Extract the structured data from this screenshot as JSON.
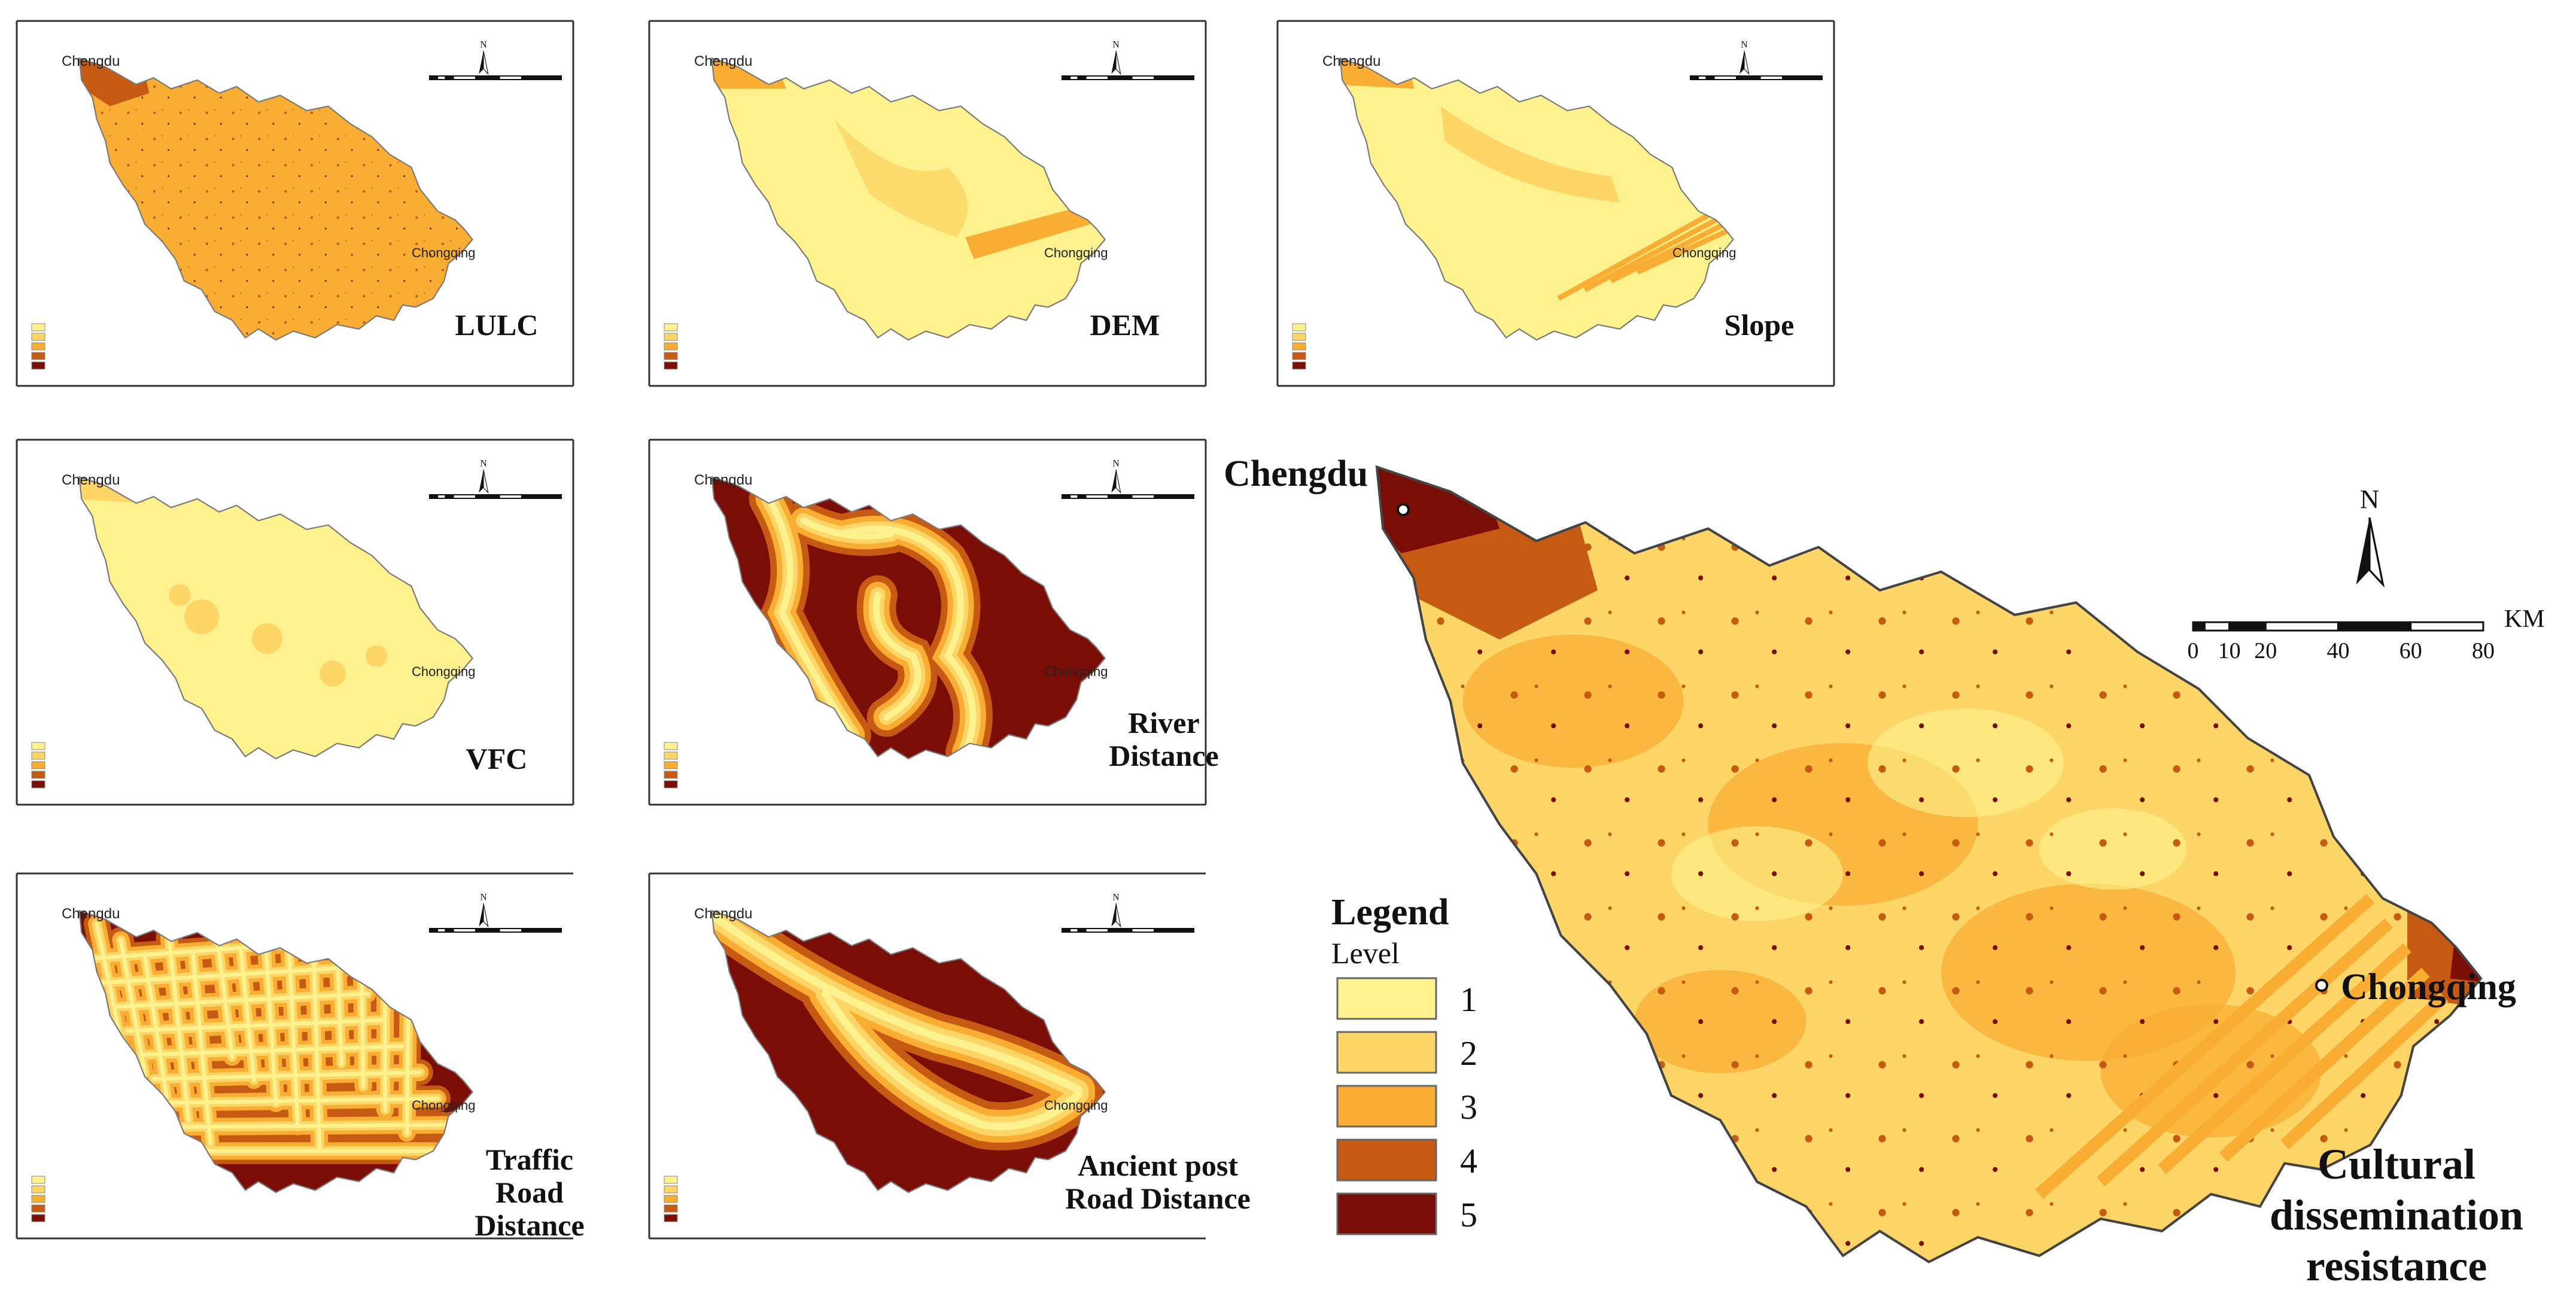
{
  "panels": [
    {
      "id": "lulc",
      "title_lines": [
        "LULC"
      ],
      "chengdu": "Chengdu",
      "chongqing": "Chongqing",
      "variant": "lulc"
    },
    {
      "id": "dem",
      "title_lines": [
        "DEM"
      ],
      "chengdu": "Chengdu",
      "chongqing": "Chongqing",
      "variant": "dem"
    },
    {
      "id": "slope",
      "title_lines": [
        "Slope"
      ],
      "chengdu": "Chengdu",
      "chongqing": "Chongqing",
      "variant": "slope"
    },
    {
      "id": "vfc",
      "title_lines": [
        "VFC"
      ],
      "chengdu": "Chengdu",
      "chongqing": "Chongqing",
      "variant": "vfc"
    },
    {
      "id": "river",
      "title_lines": [
        "River",
        "Distance"
      ],
      "chengdu": "Chengdu",
      "chongqing": "Chongqing",
      "variant": "river"
    },
    {
      "id": "traffic",
      "title_lines": [
        "Traffic",
        "Road",
        "Distance"
      ],
      "chengdu": "Chengdu",
      "chongqing": "Chongqing",
      "variant": "traffic"
    },
    {
      "id": "ancient",
      "title_lines": [
        "Ancient post",
        "Road Distance"
      ],
      "chengdu": "Chengdu",
      "chongqing": "Chongqing",
      "variant": "ancient"
    }
  ],
  "main_map": {
    "chengdu": "Chengdu",
    "chongqing": "Chongqing",
    "title_lines": [
      "Cultural",
      "dissemination",
      "resistance"
    ],
    "north_label": "N",
    "scale_unit": "KM",
    "scale_ticks": [
      "0",
      "10",
      "20",
      "40",
      "60",
      "80"
    ]
  },
  "legend": {
    "title": "Legend",
    "subtitle": "Level",
    "levels": [
      {
        "label": "1",
        "color": "#FDF28E"
      },
      {
        "label": "2",
        "color": "#FDD667"
      },
      {
        "label": "3",
        "color": "#F9AE33"
      },
      {
        "label": "4",
        "color": "#C75A12"
      },
      {
        "label": "5",
        "color": "#7A0E07"
      }
    ]
  }
}
